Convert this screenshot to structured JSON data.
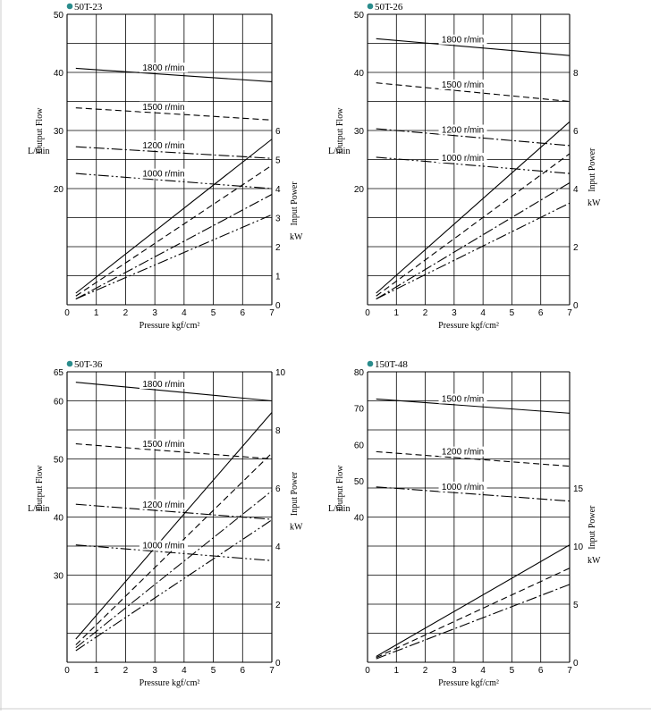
{
  "colors": {
    "accent": "#2a8c8c",
    "grid": "#000000",
    "line": "#000000"
  },
  "chart_data": [
    {
      "type": "line",
      "title": "50T-23",
      "xlabel": "Pressure  kgf/cm²",
      "x_ticks": [
        "0",
        "1",
        "2",
        "3",
        "4",
        "5",
        "6",
        "7"
      ],
      "xlim": [
        0,
        7
      ],
      "flow_axis": {
        "label": "Output Flow",
        "unit": "L/min",
        "ylim": [
          0,
          50
        ],
        "tick_values": [
          20,
          30,
          40,
          50
        ],
        "tick_labels": [
          "20",
          "30",
          "40",
          "50"
        ]
      },
      "power_axis": {
        "label": "Input Power",
        "unit": "kW",
        "ylim": [
          0,
          6
        ],
        "tick_values": [
          0,
          1,
          2,
          3,
          4,
          5,
          6
        ],
        "tick_labels": [
          "0",
          "1",
          "2",
          "3",
          "4",
          "5",
          "6"
        ]
      },
      "series": [
        {
          "name": "1800 r/min",
          "dash": "solid",
          "flow": [
            [
              0.3,
              40.7
            ],
            [
              7,
              38.4
            ]
          ],
          "power": [
            [
              0.3,
              0.4
            ],
            [
              7,
              5.7
            ]
          ]
        },
        {
          "name": "1500 r/min",
          "dash": "dash",
          "flow": [
            [
              0.3,
              33.9
            ],
            [
              7,
              31.8
            ]
          ],
          "power": [
            [
              0.3,
              0.3
            ],
            [
              7,
              4.8
            ]
          ]
        },
        {
          "name": "1200 r/min",
          "dash": "dashdot",
          "flow": [
            [
              0.3,
              27.2
            ],
            [
              7,
              25.2
            ]
          ],
          "power": [
            [
              0.3,
              0.2
            ],
            [
              7,
              3.8
            ]
          ]
        },
        {
          "name": "1000 r/min",
          "dash": "dashdotdot",
          "flow": [
            [
              0.3,
              22.6
            ],
            [
              7,
              20.0
            ]
          ],
          "power": [
            [
              0.3,
              0.2
            ],
            [
              7,
              3.1
            ]
          ]
        }
      ]
    },
    {
      "type": "line",
      "title": "50T-26",
      "xlabel": "Pressure  kgf/cm²",
      "x_ticks": [
        "0",
        "1",
        "2",
        "3",
        "4",
        "5",
        "6",
        "7"
      ],
      "xlim": [
        0,
        7
      ],
      "flow_axis": {
        "label": "Output Flow",
        "unit": "L/min",
        "ylim": [
          0,
          50
        ],
        "tick_values": [
          20,
          30,
          40,
          50
        ],
        "tick_labels": [
          "20",
          "30",
          "40",
          "50"
        ]
      },
      "power_axis": {
        "label": "Input Power",
        "unit": "kW",
        "ylim": [
          0,
          8
        ],
        "tick_values": [
          0,
          2,
          4,
          6,
          8
        ],
        "tick_labels": [
          "0",
          "2",
          "4",
          "6",
          "8"
        ]
      },
      "series": [
        {
          "name": "1800 r/min",
          "dash": "solid",
          "flow": [
            [
              0.3,
              45.8
            ],
            [
              7,
              42.9
            ]
          ],
          "power": [
            [
              0.3,
              0.4
            ],
            [
              7,
              6.3
            ]
          ]
        },
        {
          "name": "1500 r/min",
          "dash": "dash",
          "flow": [
            [
              0.3,
              38.2
            ],
            [
              7,
              35.0
            ]
          ],
          "power": [
            [
              0.3,
              0.3
            ],
            [
              7,
              5.2
            ]
          ]
        },
        {
          "name": "1200 r/min",
          "dash": "dashdot",
          "flow": [
            [
              0.3,
              30.3
            ],
            [
              7,
              27.4
            ]
          ],
          "power": [
            [
              0.3,
              0.2
            ],
            [
              7,
              4.2
            ]
          ]
        },
        {
          "name": "1000 r/min",
          "dash": "dashdotdot",
          "flow": [
            [
              0.3,
              25.4
            ],
            [
              7,
              22.6
            ]
          ],
          "power": [
            [
              0.3,
              0.2
            ],
            [
              7,
              3.5
            ]
          ]
        }
      ]
    },
    {
      "type": "line",
      "title": "50T-36",
      "xlabel": "Pressure  kgf/cm²",
      "x_ticks": [
        "0",
        "1",
        "2",
        "3",
        "4",
        "5",
        "6",
        "7"
      ],
      "xlim": [
        0,
        7
      ],
      "flow_axis": {
        "label": "Output Flow",
        "unit": "L/min",
        "ylim": [
          15,
          65
        ],
        "tick_values": [
          30,
          40,
          50,
          60,
          65
        ],
        "tick_labels": [
          "30",
          "40",
          "50",
          "60",
          "65"
        ]
      },
      "power_axis": {
        "label": "Input Power",
        "unit": "kW",
        "ylim": [
          0,
          10
        ],
        "tick_values": [
          0,
          2,
          4,
          6,
          8,
          10
        ],
        "tick_labels": [
          "0",
          "2",
          "4",
          "6",
          "8",
          "10"
        ]
      },
      "series": [
        {
          "name": "1800 r/min",
          "dash": "solid",
          "flow": [
            [
              0.3,
              63.2
            ],
            [
              7,
              60.0
            ]
          ],
          "power": [
            [
              0.3,
              0.8
            ],
            [
              7,
              8.6
            ]
          ]
        },
        {
          "name": "1500 r/min",
          "dash": "dash",
          "flow": [
            [
              0.3,
              52.6
            ],
            [
              7,
              50.0
            ]
          ],
          "power": [
            [
              0.3,
              0.6
            ],
            [
              7,
              7.2
            ]
          ]
        },
        {
          "name": "1200 r/min",
          "dash": "dashdot",
          "flow": [
            [
              0.3,
              42.2
            ],
            [
              7,
              39.6
            ]
          ],
          "power": [
            [
              0.3,
              0.5
            ],
            [
              7,
              5.9
            ]
          ]
        },
        {
          "name": "1000 r/min",
          "dash": "dashdotdot",
          "flow": [
            [
              0.3,
              35.2
            ],
            [
              7,
              32.5
            ]
          ],
          "power": [
            [
              0.3,
              0.4
            ],
            [
              7,
              4.9
            ]
          ]
        }
      ]
    },
    {
      "type": "line",
      "title": "150T-48",
      "xlabel": "Pressure  kgf/cm²",
      "x_ticks": [
        "0",
        "1",
        "2",
        "3",
        "4",
        "5",
        "6",
        "7"
      ],
      "xlim": [
        0,
        7
      ],
      "flow_axis": {
        "label": "Output Flow",
        "unit": "L/min",
        "ylim": [
          0,
          80
        ],
        "tick_values": [
          40,
          50,
          60,
          70,
          80
        ],
        "tick_labels": [
          "40",
          "50",
          "60",
          "70",
          "80"
        ]
      },
      "power_axis": {
        "label": "Input Power",
        "unit": "kW",
        "ylim": [
          0,
          20
        ],
        "tick_values": [
          0,
          5,
          10,
          15
        ],
        "tick_labels": [
          "0",
          "5",
          "10",
          "15"
        ]
      },
      "series": [
        {
          "name": "1500 r/min",
          "dash": "solid",
          "flow": [
            [
              0.3,
              72.5
            ],
            [
              7,
              68.6
            ]
          ],
          "power": [
            [
              0.3,
              0.5
            ],
            [
              7,
              10.1
            ]
          ]
        },
        {
          "name": "1200 r/min",
          "dash": "dash",
          "flow": [
            [
              0.3,
              58.0
            ],
            [
              7,
              54.0
            ]
          ],
          "power": [
            [
              0.3,
              0.4
            ],
            [
              7,
              8.1
            ]
          ]
        },
        {
          "name": "1000 r/min",
          "dash": "dashdot",
          "flow": [
            [
              0.3,
              48.3
            ],
            [
              7,
              44.4
            ]
          ],
          "power": [
            [
              0.3,
              0.3
            ],
            [
              7,
              6.7
            ]
          ]
        }
      ]
    }
  ]
}
